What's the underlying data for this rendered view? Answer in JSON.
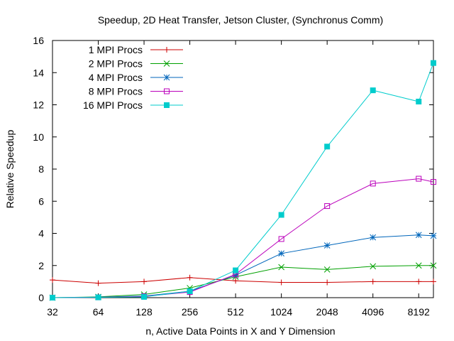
{
  "chart_data": {
    "type": "line",
    "title": "Speedup, 2D Heat Transfer, Jetson Cluster, (Synchronus Comm)",
    "xlabel": "n, Active Data Points in X and Y Dimension",
    "ylabel": "Relative Speedup",
    "x_scale": "log2",
    "x": [
      32,
      64,
      128,
      256,
      512,
      1024,
      2048,
      4096,
      8192,
      10240
    ],
    "xticks": [
      32,
      64,
      128,
      256,
      512,
      1024,
      2048,
      4096,
      8192
    ],
    "xlim": [
      32,
      10240
    ],
    "ylim": [
      0,
      16
    ],
    "yticks": [
      0,
      2,
      4,
      6,
      8,
      10,
      12,
      14,
      16
    ],
    "grid": false,
    "legend_position": "top-left",
    "series": [
      {
        "name": "1 MPI Procs",
        "color": "#cc0000",
        "marker": "plus",
        "values": [
          1.1,
          0.9,
          1.0,
          1.25,
          1.05,
          0.95,
          0.95,
          1.0,
          1.0,
          1.0
        ]
      },
      {
        "name": "2 MPI Procs",
        "color": "#00a000",
        "marker": "x",
        "values": [
          0.0,
          0.05,
          0.2,
          0.6,
          1.3,
          1.9,
          1.75,
          1.95,
          2.0,
          2.0
        ]
      },
      {
        "name": "4 MPI Procs",
        "color": "#0066bb",
        "marker": "star",
        "values": [
          0.0,
          0.03,
          0.1,
          0.4,
          1.4,
          2.75,
          3.25,
          3.75,
          3.9,
          3.85
        ]
      },
      {
        "name": "8 MPI Procs",
        "color": "#bb00bb",
        "marker": "square-open",
        "values": [
          0.0,
          0.02,
          0.08,
          0.35,
          1.45,
          3.65,
          5.7,
          7.1,
          7.4,
          7.2
        ]
      },
      {
        "name": "16 MPI Procs",
        "color": "#00cccc",
        "marker": "square-filled",
        "values": [
          0.0,
          0.02,
          0.05,
          0.4,
          1.7,
          5.15,
          9.4,
          12.9,
          12.2,
          14.6
        ]
      }
    ]
  }
}
